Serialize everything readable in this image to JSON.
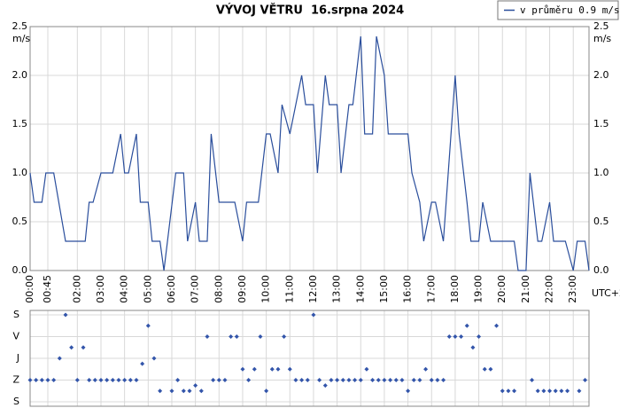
{
  "chart_data": [
    {
      "type": "line",
      "title": "VÝVOJ VĚTRU  16.srpna 2024",
      "y_label": "m/s",
      "x_label": "UTC+2",
      "legend": "top-right",
      "grid": true,
      "xlim": [
        "00:00",
        "23:40"
      ],
      "xticks": [
        "00:00",
        "00:45",
        "02:00",
        "03:00",
        "04:00",
        "05:00",
        "06:00",
        "07:00",
        "08:00",
        "09:00",
        "10:00",
        "11:00",
        "12:00",
        "13:00",
        "14:00",
        "15:00",
        "16:00",
        "17:00",
        "18:00",
        "19:00",
        "20:00",
        "21:00",
        "22:00",
        "23:00"
      ],
      "ylim": [
        0,
        2.5
      ],
      "yticks": [
        {
          "value": 0,
          "label": "0.0"
        },
        {
          "value": 0.5,
          "label": "0.5"
        },
        {
          "value": 1,
          "label": "1.0"
        },
        {
          "value": 1.5,
          "label": "1.5"
        },
        {
          "value": 2,
          "label": "2.0"
        },
        {
          "value": 2.5,
          "label": "2.5"
        }
      ],
      "x": [
        "00:00",
        "00:10",
        "00:30",
        "00:40",
        "01:00",
        "01:30",
        "02:20",
        "02:30",
        "02:40",
        "03:00",
        "03:30",
        "03:50",
        "04:00",
        "04:10",
        "04:30",
        "04:40",
        "05:00",
        "05:10",
        "05:30",
        "05:40",
        "06:10",
        "06:30",
        "06:40",
        "07:00",
        "07:10",
        "07:30",
        "07:40",
        "08:00",
        "08:40",
        "09:00",
        "09:10",
        "09:40",
        "10:00",
        "10:10",
        "10:30",
        "10:40",
        "11:00",
        "11:30",
        "11:40",
        "12:00",
        "12:10",
        "12:30",
        "12:40",
        "13:00",
        "13:10",
        "13:30",
        "13:40",
        "14:00",
        "14:10",
        "14:30",
        "14:40",
        "15:00",
        "15:10",
        "16:00",
        "16:10",
        "16:30",
        "16:40",
        "17:00",
        "17:10",
        "17:30",
        "18:00",
        "18:10",
        "18:30",
        "18:40",
        "19:00",
        "19:10",
        "19:30",
        "20:30",
        "20:40",
        "21:00",
        "21:10",
        "21:30",
        "21:40",
        "22:00",
        "22:10",
        "22:40",
        "23:00",
        "23:10",
        "23:30",
        "23:40"
      ],
      "series": [
        {
          "name": "v průměru 0.9 m/s",
          "color": "#2a4e9c",
          "values": [
            1.0,
            0.7,
            0.7,
            1.0,
            1.0,
            0.3,
            0.3,
            0.7,
            0.7,
            1.0,
            1.0,
            1.4,
            1.0,
            1.0,
            1.4,
            0.7,
            0.7,
            0.3,
            0.3,
            0.0,
            1.0,
            1.0,
            0.3,
            0.7,
            0.3,
            0.3,
            1.4,
            0.7,
            0.7,
            0.3,
            0.7,
            0.7,
            1.4,
            1.4,
            1.0,
            1.7,
            1.4,
            2.0,
            1.7,
            1.7,
            1.0,
            2.0,
            1.7,
            1.7,
            1.0,
            1.7,
            1.7,
            2.4,
            1.4,
            1.4,
            2.4,
            2.0,
            1.4,
            1.4,
            1.0,
            0.7,
            0.3,
            0.7,
            0.7,
            0.3,
            2.0,
            1.4,
            0.7,
            0.3,
            0.3,
            0.7,
            0.3,
            0.3,
            0.0,
            0.0,
            1.0,
            0.3,
            0.3,
            0.7,
            0.3,
            0.3,
            0.0,
            0.3,
            0.3,
            0.0
          ]
        }
      ]
    },
    {
      "type": "scatter",
      "color": "#3355aa",
      "ylim": [
        360,
        0
      ],
      "yticks": [
        {
          "value": 0,
          "label": "S"
        },
        {
          "value": 90,
          "label": "V"
        },
        {
          "value": 180,
          "label": "J"
        },
        {
          "value": 270,
          "label": "Z"
        },
        {
          "value": 360,
          "label": "S"
        }
      ],
      "x": [
        "00:00",
        "00:15",
        "00:30",
        "00:45",
        "01:00",
        "01:15",
        "01:30",
        "01:45",
        "02:00",
        "02:15",
        "02:30",
        "02:45",
        "03:00",
        "03:15",
        "03:30",
        "03:45",
        "04:00",
        "04:15",
        "04:30",
        "04:45",
        "05:00",
        "05:15",
        "05:30",
        "06:00",
        "06:15",
        "06:30",
        "06:45",
        "07:00",
        "07:15",
        "07:30",
        "07:45",
        "08:00",
        "08:15",
        "08:30",
        "08:45",
        "09:00",
        "09:15",
        "09:30",
        "09:45",
        "10:00",
        "10:15",
        "10:30",
        "10:45",
        "11:00",
        "11:15",
        "11:30",
        "11:45",
        "12:00",
        "12:15",
        "12:30",
        "12:45",
        "13:00",
        "13:15",
        "13:30",
        "13:45",
        "14:00",
        "14:15",
        "14:30",
        "14:45",
        "15:00",
        "15:15",
        "15:30",
        "15:45",
        "16:00",
        "16:15",
        "16:30",
        "16:45",
        "17:00",
        "17:15",
        "17:30",
        "17:45",
        "18:00",
        "18:15",
        "18:30",
        "18:45",
        "19:00",
        "19:15",
        "19:30",
        "19:45",
        "20:00",
        "20:15",
        "20:30",
        "21:15",
        "21:30",
        "21:45",
        "22:00",
        "22:15",
        "22:30",
        "22:45",
        "23:15",
        "23:30"
      ],
      "values": [
        270,
        270,
        270,
        270,
        270,
        180,
        0,
        135,
        270,
        135,
        270,
        270,
        270,
        270,
        270,
        270,
        270,
        270,
        270,
        202.5,
        45,
        180,
        315,
        315,
        270,
        315,
        315,
        292.5,
        315,
        90,
        270,
        270,
        270,
        90,
        90,
        225,
        270,
        225,
        90,
        315,
        225,
        225,
        90,
        225,
        270,
        270,
        270,
        0,
        270,
        292.5,
        270,
        270,
        270,
        270,
        270,
        270,
        225,
        270,
        270,
        270,
        270,
        270,
        270,
        315,
        270,
        270,
        225,
        270,
        270,
        270,
        90,
        90,
        90,
        45,
        135,
        90,
        225,
        225,
        45,
        315,
        315,
        315,
        270,
        315,
        315,
        315,
        315,
        315,
        315,
        315,
        270
      ]
    }
  ]
}
